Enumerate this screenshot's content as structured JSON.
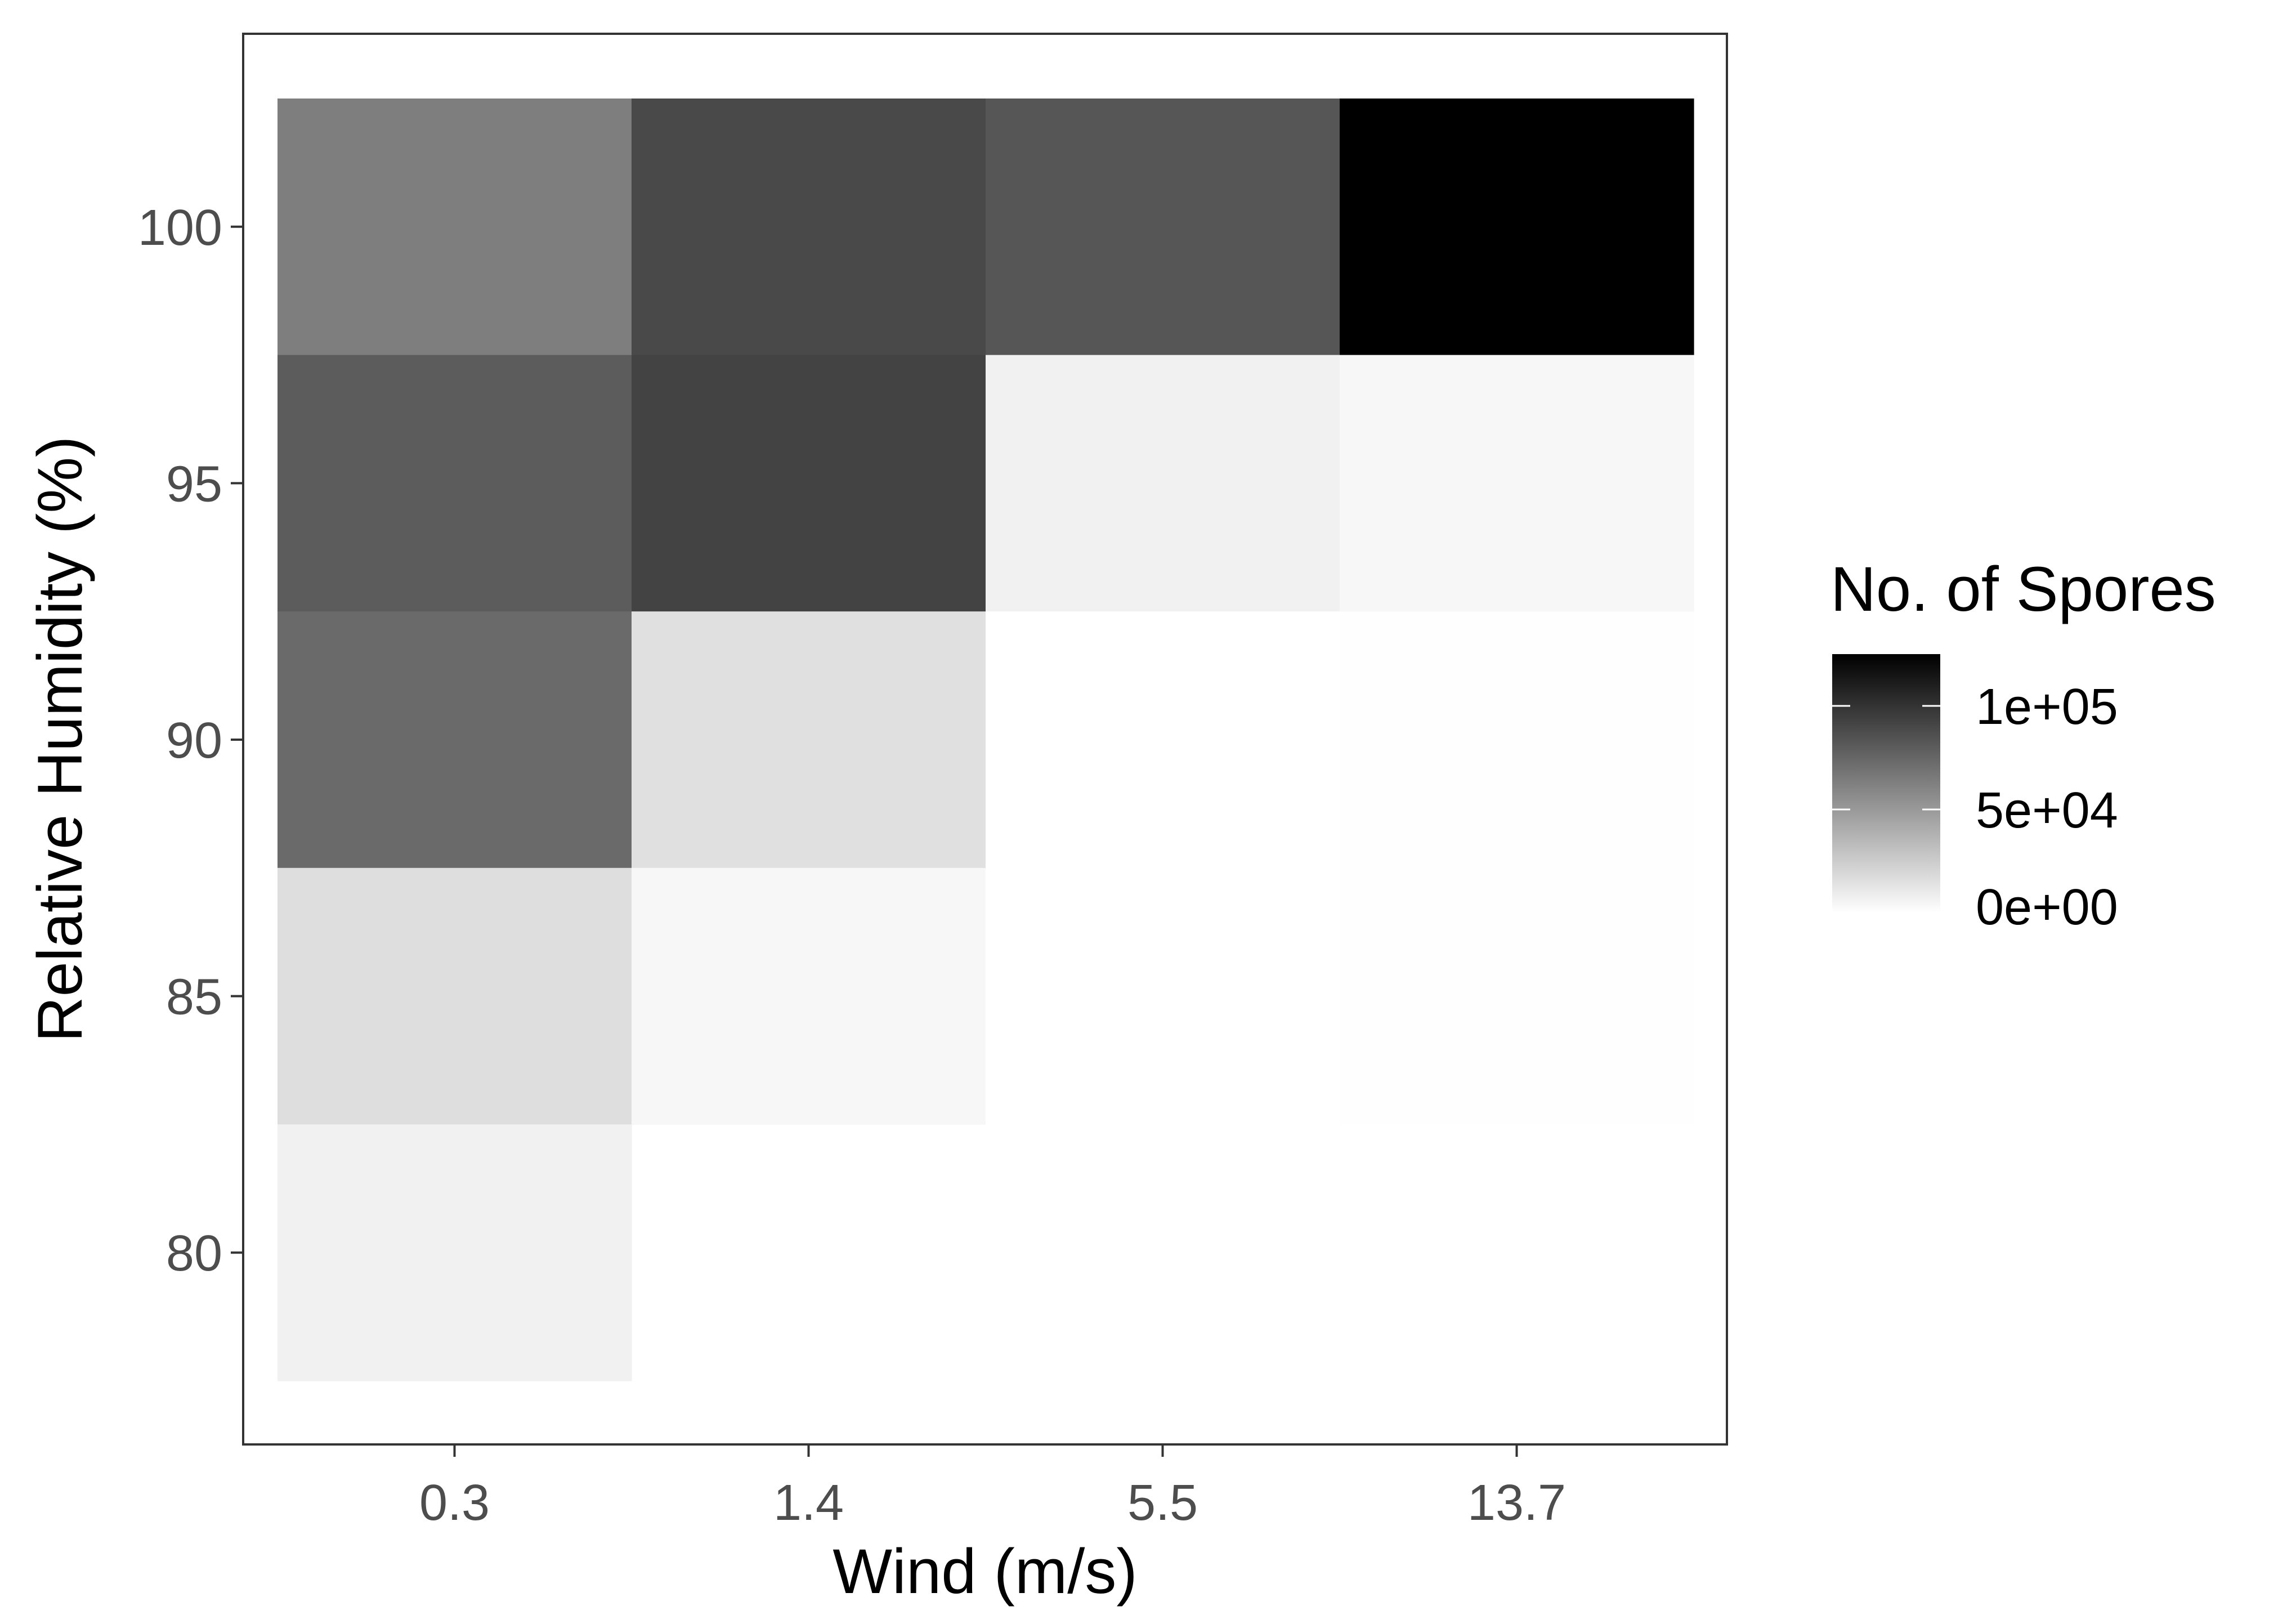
{
  "chart_data": {
    "type": "heatmap",
    "title": "",
    "xlabel": "Wind (m/s)",
    "ylabel": "Relative Humidity (%)",
    "x_categories": [
      "0.3",
      "1.4",
      "5.5",
      "13.7"
    ],
    "y_ticks": [
      100,
      95,
      90,
      85,
      80
    ],
    "ylim": [
      77.5,
      102.5
    ],
    "grid": false,
    "color_scale": {
      "low": "#ffffff",
      "high": "#000000",
      "min": 0,
      "max": 125000
    },
    "cells": [
      {
        "x": "0.3",
        "y": 100,
        "value": 63000
      },
      {
        "x": "1.4",
        "y": 100,
        "value": 89000
      },
      {
        "x": "5.5",
        "y": 100,
        "value": 83000
      },
      {
        "x": "13.7",
        "y": 100,
        "value": 125000
      },
      {
        "x": "0.3",
        "y": 95,
        "value": 80000
      },
      {
        "x": "1.4",
        "y": 95,
        "value": 92000
      },
      {
        "x": "5.5",
        "y": 95,
        "value": 7000
      },
      {
        "x": "13.7",
        "y": 95,
        "value": 4000
      },
      {
        "x": "0.3",
        "y": 90,
        "value": 73000
      },
      {
        "x": "1.4",
        "y": 90,
        "value": 15000
      },
      {
        "x": "5.5",
        "y": 90,
        "value": 0
      },
      {
        "x": "13.7",
        "y": 90,
        "value": 300
      },
      {
        "x": "0.3",
        "y": 85,
        "value": 16000
      },
      {
        "x": "1.4",
        "y": 85,
        "value": 4000
      },
      {
        "x": "5.5",
        "y": 85,
        "value": 0
      },
      {
        "x": "13.7",
        "y": 85,
        "value": 300
      },
      {
        "x": "0.3",
        "y": 80,
        "value": 7000
      }
    ],
    "legend": {
      "title": "No. of Spores",
      "position": "right",
      "breaks": [
        {
          "value": 100000,
          "label": "1e+05"
        },
        {
          "value": 50000,
          "label": "5e+04"
        },
        {
          "value": 0,
          "label": "0e+00"
        }
      ]
    }
  }
}
